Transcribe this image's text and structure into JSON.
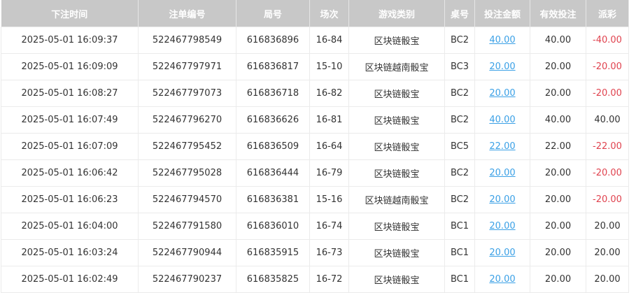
{
  "headers": [
    "下注时间",
    "注单编号",
    "局号",
    "场次",
    "游戏类别",
    "桌号",
    "投注金额",
    "有效投注",
    "派彩"
  ],
  "colors": {
    "header_bg": "#c8c8c8",
    "link": "#3aa0e6",
    "negative": "#e0434f"
  },
  "rows": [
    [
      "2025-05-01 16:09:37",
      "522467798549",
      "616836896",
      "16-84",
      "区块链骰宝",
      "BC2",
      "40.00",
      "40.00",
      "-40.00"
    ],
    [
      "2025-05-01 16:09:09",
      "522467797971",
      "616836817",
      "15-10",
      "区块链越南骰宝",
      "BC3",
      "20.00",
      "20.00",
      "-20.00"
    ],
    [
      "2025-05-01 16:08:27",
      "522467797073",
      "616836718",
      "16-82",
      "区块链骰宝",
      "BC2",
      "20.00",
      "20.00",
      "-20.00"
    ],
    [
      "2025-05-01 16:07:49",
      "522467796270",
      "616836626",
      "16-81",
      "区块链骰宝",
      "BC2",
      "40.00",
      "40.00",
      "40.00"
    ],
    [
      "2025-05-01 16:07:09",
      "522467795452",
      "616836509",
      "16-64",
      "区块链骰宝",
      "BC5",
      "22.00",
      "22.00",
      "-22.00"
    ],
    [
      "2025-05-01 16:06:42",
      "522467795028",
      "616836444",
      "16-79",
      "区块链骰宝",
      "BC2",
      "20.00",
      "20.00",
      "-20.00"
    ],
    [
      "2025-05-01 16:06:23",
      "522467794570",
      "616836381",
      "15-16",
      "区块链越南骰宝",
      "BC2",
      "20.00",
      "20.00",
      "-20.00"
    ],
    [
      "2025-05-01 16:04:00",
      "522467791580",
      "616836010",
      "16-74",
      "区块链骰宝",
      "BC1",
      "20.00",
      "20.00",
      "20.00"
    ],
    [
      "2025-05-01 16:03:24",
      "522467790944",
      "616835915",
      "16-73",
      "区块链骰宝",
      "BC1",
      "20.00",
      "20.00",
      "20.00"
    ],
    [
      "2025-05-01 16:02:49",
      "522467790237",
      "616835825",
      "16-72",
      "区块链骰宝",
      "BC1",
      "20.00",
      "20.00",
      "20.00"
    ]
  ]
}
